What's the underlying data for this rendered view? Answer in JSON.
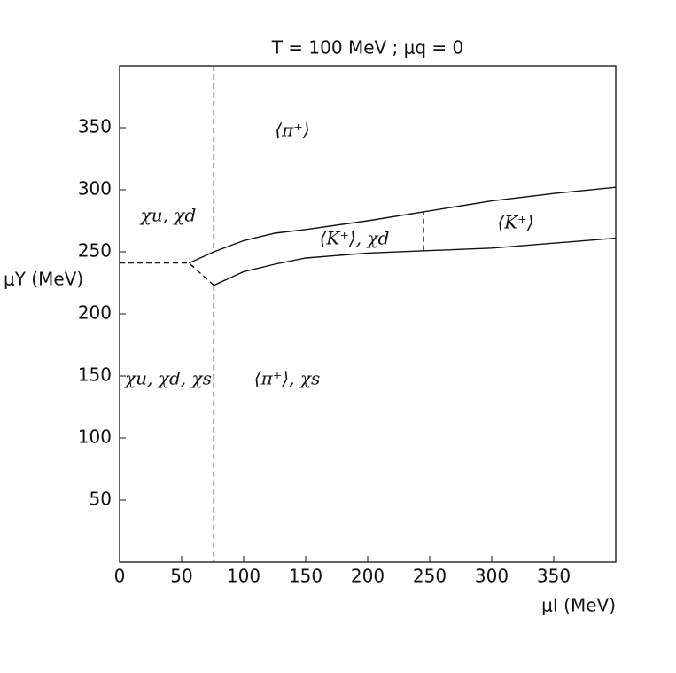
{
  "chart_data": {
    "type": "line",
    "title": "T = 100 MeV  ;  μq = 0",
    "x_label": "μI  (MeV)",
    "y_label": "μY   (MeV)",
    "xlim": [
      0,
      400
    ],
    "ylim": [
      0,
      400
    ],
    "xticks": [
      0,
      50,
      100,
      150,
      200,
      250,
      300,
      350
    ],
    "yticks": [
      50,
      100,
      150,
      200,
      250,
      300,
      350
    ],
    "grid": false,
    "series": [
      {
        "color": "#111111",
        "dashed": false,
        "x": [
          56,
          76,
          100,
          125,
          150,
          200,
          250,
          300,
          350,
          400
        ],
        "y": [
          241,
          250,
          259,
          265,
          268,
          275,
          283,
          291,
          297,
          302
        ]
      },
      {
        "color": "#111111",
        "dashed": false,
        "x": [
          76,
          100,
          125,
          150,
          200,
          250,
          300,
          350,
          400
        ],
        "y": [
          223,
          234,
          240,
          245,
          249,
          251,
          253,
          257,
          261
        ]
      },
      {
        "color": "#111111",
        "dashed": true,
        "x": [
          0,
          56,
          76
        ],
        "y": [
          241,
          241,
          223
        ]
      },
      {
        "color": "#111111",
        "dashed": true,
        "x": [
          76,
          76
        ],
        "y": [
          400,
          250
        ]
      },
      {
        "color": "#111111",
        "dashed": true,
        "x": [
          76,
          76
        ],
        "y": [
          223,
          0
        ]
      },
      {
        "color": "#111111",
        "dashed": true,
        "x": [
          245,
          245
        ],
        "y": [
          251,
          282
        ]
      }
    ],
    "annotations": [
      "⟨π⁺⟩",
      "χu, χd",
      "⟨K⁺⟩, χd",
      "⟨K⁺⟩",
      "χu, χd, χs",
      "⟨π⁺⟩, χs"
    ]
  }
}
